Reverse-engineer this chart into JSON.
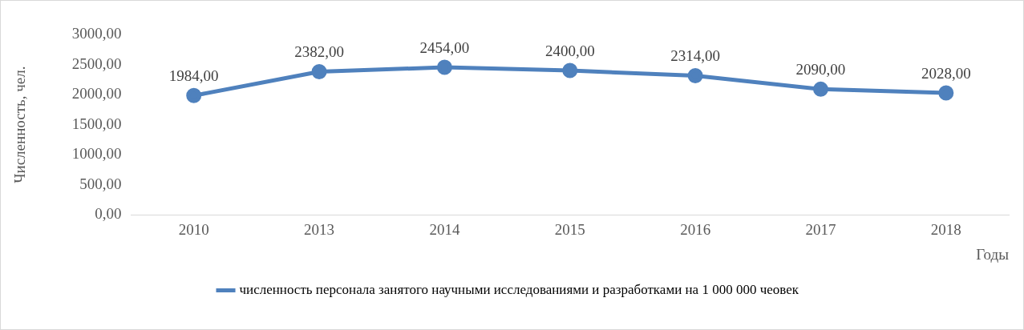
{
  "chart_data": {
    "type": "line",
    "xlabel": "Годы",
    "ylabel": "Численность, чел.",
    "categories": [
      "2010",
      "2013",
      "2014",
      "2015",
      "2016",
      "2017",
      "2018"
    ],
    "series": [
      {
        "name": "численность персонала занятого научными исследованиями и разработками на 1 000 000 чеовек",
        "color": "#4f81bd",
        "values": [
          1984,
          2382,
          2454,
          2400,
          2314,
          2090,
          2028
        ],
        "value_labels": [
          "1984,00",
          "2382,00",
          "2454,00",
          "2400,00",
          "2314,00",
          "2090,00",
          "2028,00"
        ]
      }
    ],
    "ylim": [
      0,
      3000
    ],
    "yticks": [
      {
        "value": 0,
        "label": "0,00"
      },
      {
        "value": 500,
        "label": "500,00"
      },
      {
        "value": 1000,
        "label": "1000,00"
      },
      {
        "value": 1500,
        "label": "1500,00"
      },
      {
        "value": 2000,
        "label": "2000,00"
      },
      {
        "value": 2500,
        "label": "2500,00"
      },
      {
        "value": 3000,
        "label": "3000,00"
      }
    ],
    "grid": false,
    "legend": "bottom",
    "marker": "circle",
    "line_style": "solid"
  }
}
